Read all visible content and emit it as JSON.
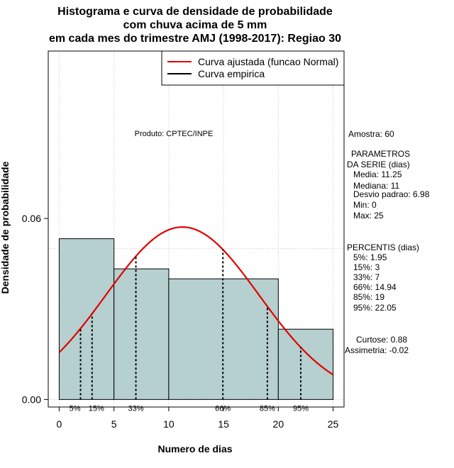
{
  "chart_data": {
    "type": "bar",
    "title_lines": [
      "Histograma e curva de densidade de probabilidade",
      "com chuva acima de 5 mm",
      "em cada mes do trimestre AMJ (1998-2017): Regiao 30"
    ],
    "xlabel": "Numero de dias",
    "ylabel": "Densidade de probabilidade",
    "xlim": [
      -1,
      26
    ],
    "ylim": [
      -0.0025,
      0.1155
    ],
    "x_ticks": [
      0,
      5,
      10,
      15,
      20,
      25
    ],
    "y_ticks": [
      0.0,
      0.06
    ],
    "y_tick_labels": [
      "0.00",
      "0.06"
    ],
    "grid": true,
    "bins": [
      {
        "from": 0,
        "to": 5,
        "density": 0.0533
      },
      {
        "from": 5,
        "to": 10,
        "density": 0.0433
      },
      {
        "from": 10,
        "to": 20,
        "density": 0.04
      },
      {
        "from": 20,
        "to": 25,
        "density": 0.0233
      }
    ],
    "normal_fit": {
      "mean": 11.25,
      "sd": 6.98,
      "x_range": [
        0,
        25
      ]
    },
    "percentiles": [
      {
        "label": "5%",
        "x": 1.95
      },
      {
        "label": "15%",
        "x": 3
      },
      {
        "label": "33%",
        "x": 7
      },
      {
        "label": "66%",
        "x": 14.94
      },
      {
        "label": "85%",
        "x": 19
      },
      {
        "label": "95%",
        "x": 22.05
      }
    ],
    "colors": {
      "bars": "#b6cfcf",
      "bar_edge": "#000000",
      "curve": "#e00000",
      "grid": "#c8c8c8"
    },
    "legend": {
      "position": "top-right",
      "entries": [
        {
          "label": "Curva ajustada (funcao Normal)",
          "color": "#e00000"
        },
        {
          "label": "Curva empirica",
          "color": "#000000"
        }
      ]
    },
    "annotation": "Produto: CPTEC/INPE"
  },
  "stats": {
    "sample": "Amostra: 60",
    "params_header_1": "PARAMETROS",
    "params_header_2": "DA SERIE (dias)",
    "media": "Media: 11.25",
    "mediana": "Mediana: 11",
    "desvio": "Desvio padrao: 6.98",
    "min": "Min: 0",
    "max": "Max: 25",
    "perc_header": "PERCENTIS (dias)",
    "p5": "5%: 1.95",
    "p15": "15%: 3",
    "p33": "33%: 7",
    "p66": "66%: 14.94",
    "p85": "85%: 19",
    "p95": "95%: 22.05",
    "curtose": "Curtose: 0.88",
    "assimetria": "Assimetria: -0.02"
  }
}
